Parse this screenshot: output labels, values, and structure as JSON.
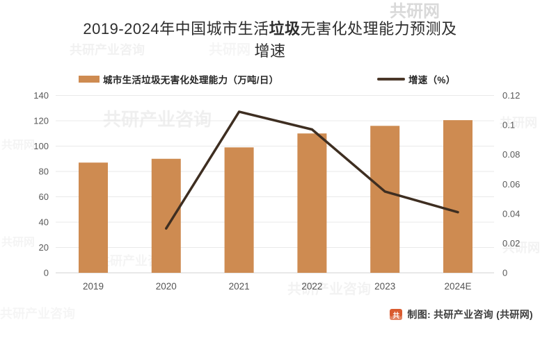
{
  "title": {
    "line1_pre": "2019-2024年中国城市生活",
    "line1_bold": "垃圾",
    "line1_post": "无害化处理能力预测及",
    "line2": "增速"
  },
  "legend": {
    "capacity": {
      "label": "城市生活垃圾无害化处理能力（万吨/日）",
      "color": "#CE8B51"
    },
    "growth": {
      "label": "增速（%）",
      "color": "#4A3729"
    }
  },
  "chart_data": {
    "type": "bar",
    "subtype": "bar+line, dual y-axis",
    "title": "2019-2024年中国城市生活垃圾无害化处理能力预测及增速",
    "categories": [
      "2019",
      "2020",
      "2021",
      "2022",
      "2023",
      "2024E"
    ],
    "series": [
      {
        "name": "城市生活垃圾无害化处理能力（万吨/日）",
        "type": "bar",
        "axis": "left",
        "color": "#CE8B51",
        "values": [
          87,
          90,
          99,
          110,
          116,
          120.5
        ]
      },
      {
        "name": "增速（%）",
        "type": "line",
        "axis": "right",
        "color": "#3E2E21",
        "values": [
          null,
          0.03,
          0.109,
          0.097,
          0.055,
          0.041
        ]
      }
    ],
    "left_axis": {
      "min": 0,
      "max": 140,
      "step": 20,
      "tick_labels": [
        "0",
        "20",
        "40",
        "60",
        "80",
        "100",
        "120",
        "140"
      ]
    },
    "right_axis": {
      "min": 0,
      "max": 0.12,
      "step": 0.02,
      "tick_labels": [
        "0",
        "0.02",
        "0.04",
        "0.06",
        "0.08",
        "0.1",
        "0.12"
      ]
    },
    "grid": true,
    "legend_position": "top",
    "xlabel": "",
    "ylabel": ""
  },
  "footer": {
    "credit": "制图: 共研产业咨询 (共研网)",
    "logo_glyph": "共",
    "logo_color": "#D95B2F"
  },
  "watermarks": [
    "共研产业咨询",
    "共研网"
  ]
}
